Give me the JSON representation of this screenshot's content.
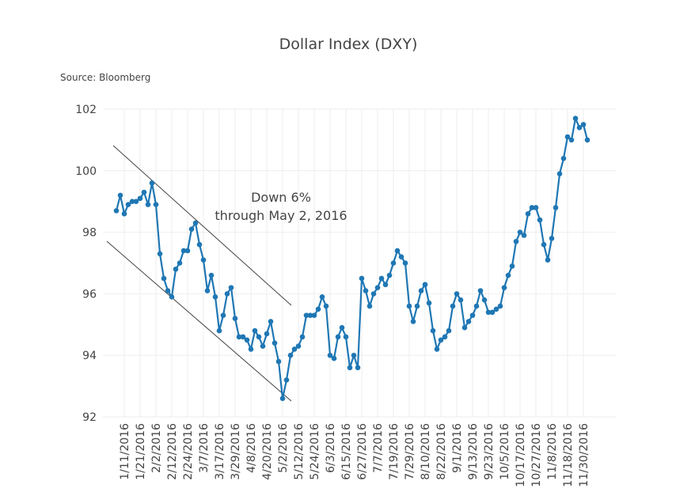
{
  "chart_data": {
    "type": "line",
    "title": "Dollar Index (DXY)",
    "subtitle": "Source: Bloomberg",
    "annotation": [
      "Down 6%",
      "through May 2, 2016"
    ],
    "x": [
      "1/5/2016",
      "1/7/2016",
      "1/11/2016",
      "1/13/2016",
      "1/15/2016",
      "1/19/2016",
      "1/21/2016",
      "1/25/2016",
      "1/27/2016",
      "1/29/2016",
      "2/2/2016",
      "2/4/2016",
      "2/8/2016",
      "2/10/2016",
      "2/12/2016",
      "2/16/2016",
      "2/18/2016",
      "2/22/2016",
      "2/24/2016",
      "2/26/2016",
      "3/1/2016",
      "3/3/2016",
      "3/7/2016",
      "3/9/2016",
      "3/11/2016",
      "3/15/2016",
      "3/17/2016",
      "3/21/2016",
      "3/23/2016",
      "3/25/2016",
      "3/29/2016",
      "3/31/2016",
      "4/4/2016",
      "4/6/2016",
      "4/8/2016",
      "4/12/2016",
      "4/14/2016",
      "4/18/2016",
      "4/20/2016",
      "4/22/2016",
      "4/26/2016",
      "4/28/2016",
      "5/2/2016",
      "5/4/2016",
      "5/6/2016",
      "5/10/2016",
      "5/12/2016",
      "5/16/2016",
      "5/18/2016",
      "5/20/2016",
      "5/24/2016",
      "5/26/2016",
      "5/30/2016",
      "6/1/2016",
      "6/3/2016",
      "6/7/2016",
      "6/9/2016",
      "6/13/2016",
      "6/15/2016",
      "6/17/2016",
      "6/21/2016",
      "6/23/2016",
      "6/27/2016",
      "6/29/2016",
      "7/1/2016",
      "7/5/2016",
      "7/7/2016",
      "7/11/2016",
      "7/13/2016",
      "7/15/2016",
      "7/19/2016",
      "7/21/2016",
      "7/25/2016",
      "7/27/2016",
      "7/29/2016",
      "8/2/2016",
      "8/4/2016",
      "8/8/2016",
      "8/10/2016",
      "8/12/2016",
      "8/16/2016",
      "8/18/2016",
      "8/22/2016",
      "8/24/2016",
      "8/26/2016",
      "8/30/2016",
      "9/1/2016",
      "9/5/2016",
      "9/7/2016",
      "9/9/2016",
      "9/13/2016",
      "9/15/2016",
      "9/19/2016",
      "9/21/2016",
      "9/23/2016",
      "9/27/2016",
      "9/29/2016",
      "10/3/2016",
      "10/5/2016",
      "10/7/2016",
      "10/11/2016",
      "10/13/2016",
      "10/17/2016",
      "10/19/2016",
      "10/21/2016",
      "10/25/2016",
      "10/27/2016",
      "10/31/2016",
      "11/2/2016",
      "11/4/2016",
      "11/8/2016",
      "11/10/2016",
      "11/14/2016",
      "11/16/2016",
      "11/18/2016",
      "11/22/2016",
      "11/24/2016",
      "11/28/2016",
      "11/30/2016",
      "12/2/2016"
    ],
    "series": [
      {
        "name": "DXY",
        "color": "#1f77b4",
        "values": [
          98.7,
          99.2,
          98.6,
          98.9,
          99.0,
          99.0,
          99.1,
          99.3,
          98.9,
          99.6,
          98.9,
          97.3,
          96.5,
          96.1,
          95.9,
          96.8,
          97.0,
          97.4,
          97.4,
          98.1,
          98.3,
          97.6,
          97.1,
          96.1,
          96.6,
          95.9,
          94.8,
          95.3,
          96.0,
          96.2,
          95.2,
          94.6,
          94.6,
          94.5,
          94.2,
          94.8,
          94.6,
          94.3,
          94.7,
          95.1,
          94.4,
          93.8,
          92.6,
          93.2,
          94.0,
          94.2,
          94.3,
          94.6,
          95.3,
          95.3,
          95.3,
          95.5,
          95.9,
          95.6,
          94.0,
          93.9,
          94.6,
          94.9,
          94.6,
          93.6,
          94.0,
          93.6,
          96.5,
          96.1,
          95.6,
          96.0,
          96.2,
          96.5,
          96.3,
          96.6,
          97.0,
          97.4,
          97.2,
          97.0,
          95.6,
          95.1,
          95.6,
          96.1,
          96.3,
          95.7,
          94.8,
          94.2,
          94.5,
          94.6,
          94.8,
          95.6,
          96.0,
          95.8,
          94.9,
          95.1,
          95.3,
          95.6,
          96.1,
          95.8,
          95.4,
          95.4,
          95.5,
          95.6,
          96.2,
          96.6,
          96.9,
          97.7,
          98.0,
          97.9,
          98.6,
          98.8,
          98.8,
          98.4,
          97.6,
          97.1,
          97.8,
          98.8,
          99.9,
          100.4,
          101.1,
          101.0,
          101.7,
          101.4,
          101.5,
          101.0
        ]
      }
    ],
    "xticks": [
      "1/11/2016",
      "1/21/2016",
      "2/2/2016",
      "2/12/2016",
      "2/24/2016",
      "3/7/2016",
      "3/17/2016",
      "3/29/2016",
      "4/8/2016",
      "4/20/2016",
      "5/2/2016",
      "5/12/2016",
      "5/24/2016",
      "6/3/2016",
      "6/15/2016",
      "6/27/2016",
      "7/7/2016",
      "7/19/2016",
      "7/29/2016",
      "8/10/2016",
      "8/22/2016",
      "9/1/2016",
      "9/13/2016",
      "9/23/2016",
      "10/5/2016",
      "10/17/2016",
      "10/27/2016",
      "11/8/2016",
      "11/18/2016",
      "11/30/2016"
    ],
    "ylim": [
      92,
      102
    ],
    "yticks": [
      92,
      94,
      96,
      98,
      100,
      102
    ],
    "grid": true
  }
}
